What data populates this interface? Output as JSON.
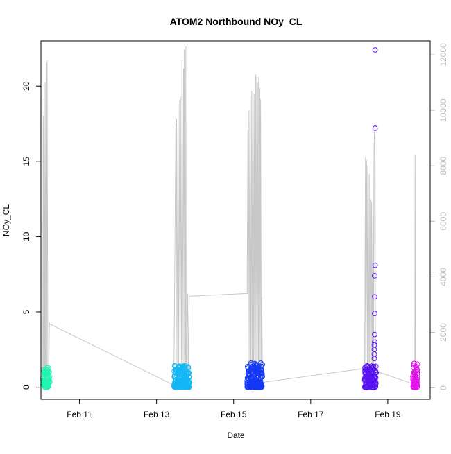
{
  "chart_data": {
    "type": "scatter",
    "title": "ATOM2 Northbound NOy_CL",
    "xlabel": "Date",
    "ylabel": "NOy_CL",
    "x_ticks": [
      {
        "day": 11,
        "label": "Feb 11"
      },
      {
        "day": 13,
        "label": "Feb 13"
      },
      {
        "day": 15,
        "label": "Feb 15"
      },
      {
        "day": 17,
        "label": "Feb 17"
      },
      {
        "day": 19,
        "label": "Feb 19"
      }
    ],
    "xlim": [
      10.0,
      20.1
    ],
    "ylim": [
      -0.8,
      23.0
    ],
    "y_ticks": [
      0,
      5,
      10,
      15,
      20
    ],
    "y2lim": [
      -410,
      12500
    ],
    "y2_ticks": [
      0,
      2000,
      4000,
      6000,
      8000,
      10000,
      12000
    ],
    "y2_color": "#bebebe",
    "grid": false,
    "flights": [
      {
        "x_range": [
          10.05,
          10.23
        ],
        "color": "#1ff5b0",
        "y_max": 1.3
      },
      {
        "x_range": [
          13.45,
          13.85
        ],
        "color": "#13b8f5",
        "y_max": 1.45
      },
      {
        "x_range": [
          15.35,
          15.75
        ],
        "color": "#1438f5",
        "y_max": 1.6
      },
      {
        "x_range": [
          18.4,
          18.7
        ],
        "color": "#5a12f2",
        "y_max": 1.5
      },
      {
        "x_range": [
          19.65,
          19.77
        ],
        "color": "#e411ee",
        "y_max": 1.7
      }
    ],
    "outliers": [
      {
        "x": 18.67,
        "y": 22.4,
        "color": "#5a12f2"
      },
      {
        "x": 18.67,
        "y": 17.2,
        "color": "#5a12f2"
      },
      {
        "x": 18.67,
        "y": 8.1,
        "color": "#5a12f2"
      },
      {
        "x": 18.66,
        "y": 7.4,
        "color": "#5a12f2"
      },
      {
        "x": 18.66,
        "y": 6.0,
        "color": "#5a12f2"
      },
      {
        "x": 18.66,
        "y": 4.9,
        "color": "#5a12f2"
      },
      {
        "x": 18.66,
        "y": 3.5,
        "color": "#5a12f2"
      },
      {
        "x": 18.66,
        "y": 3.0,
        "color": "#5a12f2"
      },
      {
        "x": 18.65,
        "y": 2.8,
        "color": "#5a12f2"
      },
      {
        "x": 18.65,
        "y": 2.5,
        "color": "#5a12f2"
      },
      {
        "x": 18.65,
        "y": 2.2,
        "color": "#5a12f2"
      },
      {
        "x": 18.65,
        "y": 1.9,
        "color": "#5a12f2"
      },
      {
        "x": 15.45,
        "y": 1.6,
        "color": "#1438f5"
      },
      {
        "x": 15.5,
        "y": 1.4,
        "color": "#1438f5"
      },
      {
        "x": 15.72,
        "y": 1.1,
        "color": "#1438f5"
      },
      {
        "x": 15.7,
        "y": 0.95,
        "color": "#1438f5"
      }
    ],
    "secondary_series": {
      "color": "#c8c8c8",
      "x": [
        10.05,
        10.06,
        10.07,
        10.08,
        10.1,
        10.11,
        10.12,
        10.14,
        10.15,
        10.16,
        10.18,
        10.19,
        10.2,
        10.22,
        10.23,
        13.45,
        13.5,
        13.51,
        13.52,
        13.55,
        13.56,
        13.57,
        13.6,
        13.61,
        13.62,
        13.65,
        13.66,
        13.67,
        13.7,
        13.71,
        13.72,
        13.75,
        13.76,
        13.77,
        13.8,
        13.81,
        13.82,
        13.85,
        15.35,
        15.37,
        15.38,
        15.4,
        15.42,
        15.43,
        15.45,
        15.47,
        15.48,
        15.5,
        15.52,
        15.53,
        15.55,
        15.57,
        15.58,
        15.6,
        15.61,
        15.62,
        15.64,
        15.65,
        15.66,
        15.68,
        15.69,
        15.7,
        15.72,
        15.73,
        15.75,
        18.4,
        18.42,
        18.43,
        18.45,
        18.47,
        18.48,
        18.5,
        18.52,
        18.53,
        18.55,
        18.57,
        18.58,
        18.6,
        18.62,
        18.63,
        18.65,
        18.67,
        18.68,
        18.7,
        19.65,
        19.7,
        19.71,
        19.72,
        19.77
      ],
      "y": [
        200,
        9800,
        150,
        10400,
        250,
        11000,
        200,
        11700,
        150,
        11800,
        300,
        200,
        250,
        2350,
        2300,
        100,
        9500,
        200,
        9700,
        150,
        10200,
        250,
        10400,
        180,
        10500,
        200,
        11800,
        250,
        11500,
        200,
        12200,
        150,
        12300,
        200,
        3000,
        3400,
        300,
        3300,
        3400,
        9300,
        200,
        10000,
        300,
        10500,
        200,
        10700,
        250,
        10600,
        300,
        10600,
        150,
        11300,
        200,
        11200,
        300,
        11000,
        100,
        11200,
        150,
        10800,
        200,
        10400,
        250,
        3200,
        200,
        700,
        8300,
        200,
        8200,
        250,
        8000,
        150,
        7700,
        250,
        6800,
        300,
        6700,
        200,
        8800,
        350,
        9200,
        9000,
        300,
        600,
        150,
        300,
        8400,
        400,
        300
      ]
    }
  }
}
